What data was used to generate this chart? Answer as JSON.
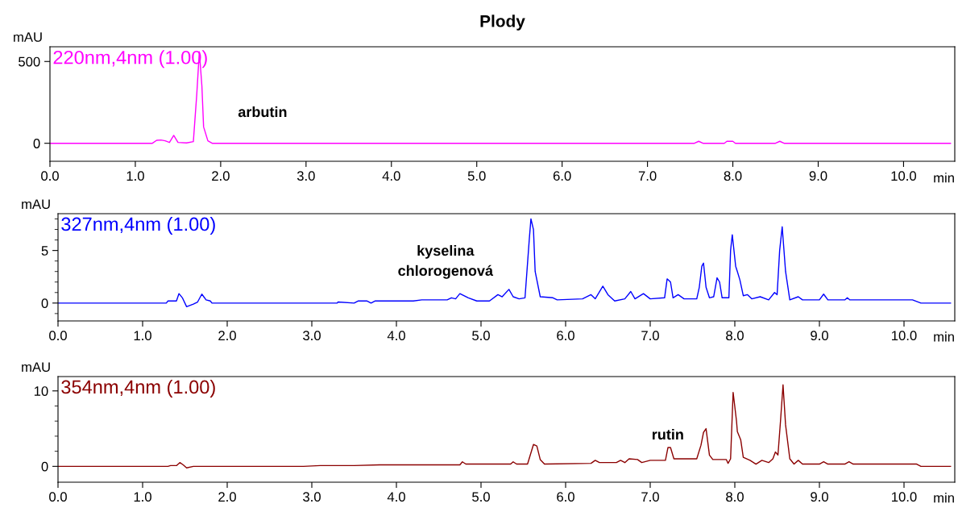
{
  "chart_data": [
    {
      "type": "line",
      "title": "Plody",
      "xlabel": "min",
      "ylabel": "mAU",
      "xlim": [
        0,
        10.6
      ],
      "ylim": [
        -110,
        590
      ],
      "xticks": [
        {
          "value": 0,
          "label": "0.0"
        },
        {
          "value": 1,
          "label": "1.0"
        },
        {
          "value": 2,
          "label": "2.0"
        },
        {
          "value": 3,
          "label": "3.0"
        },
        {
          "value": 4,
          "label": "4.0"
        },
        {
          "value": 5,
          "label": "5.0"
        },
        {
          "value": 6,
          "label": "6.0"
        },
        {
          "value": 7,
          "label": "7.0"
        },
        {
          "value": 8,
          "label": "8.0"
        },
        {
          "value": 9,
          "label": "9.0"
        },
        {
          "value": 10,
          "label": "10.0"
        }
      ],
      "yticks": [
        0,
        500
      ],
      "grid": false,
      "legend": false,
      "annotations": [
        "arbutin"
      ],
      "series": [
        {
          "name": "220nm,4nm (1.00)",
          "color": "#ff00ff",
          "x": [
            0,
            1.2,
            1.25,
            1.3,
            1.35,
            1.4,
            1.45,
            1.5,
            1.6,
            1.68,
            1.72,
            1.75,
            1.78,
            1.8,
            1.85,
            1.9,
            7.55,
            7.6,
            7.65,
            7.9,
            7.93,
            8.0,
            8.03,
            8.5,
            8.55,
            8.6,
            10.55
          ],
          "values": [
            0,
            0,
            18,
            20,
            15,
            5,
            48,
            5,
            2,
            10,
            300,
            560,
            350,
            100,
            15,
            0,
            0,
            12,
            0,
            0,
            12,
            12,
            0,
            0,
            12,
            0,
            0
          ]
        }
      ]
    },
    {
      "type": "line",
      "xlabel": "min",
      "ylabel": "mAU",
      "xlim": [
        0,
        10.6
      ],
      "ylim": [
        -1.7,
        8.5
      ],
      "xticks": [
        {
          "value": 0,
          "label": "0.0"
        },
        {
          "value": 1,
          "label": "1.0"
        },
        {
          "value": 2,
          "label": "2.0"
        },
        {
          "value": 3,
          "label": "3.0"
        },
        {
          "value": 4,
          "label": "4.0"
        },
        {
          "value": 5,
          "label": "5.0"
        },
        {
          "value": 6,
          "label": "6.0"
        },
        {
          "value": 7,
          "label": "7.0"
        },
        {
          "value": 8,
          "label": "8.0"
        },
        {
          "value": 9,
          "label": "9.0"
        },
        {
          "value": 10,
          "label": "10.0"
        }
      ],
      "yticks": [
        {
          "value": -1,
          "label": null
        },
        0,
        {
          "value": 1,
          "label": null
        },
        {
          "value": 2,
          "label": null
        },
        {
          "value": 3,
          "label": null
        },
        {
          "value": 4,
          "label": null
        },
        5,
        {
          "value": 6,
          "label": null
        },
        {
          "value": 7,
          "label": null
        },
        {
          "value": 8,
          "label": null
        }
      ],
      "grid": false,
      "legend": false,
      "annotations": [
        "kyselina\nchlorogenová"
      ],
      "series": [
        {
          "name": "327nm,4nm (1.00)",
          "color": "#0000ff",
          "x": [
            0,
            1.28,
            1.3,
            1.4,
            1.43,
            1.47,
            1.52,
            1.6,
            1.65,
            1.7,
            1.75,
            1.8,
            1.82,
            3.3,
            3.31,
            3.5,
            3.55,
            3.65,
            3.7,
            3.75,
            4.2,
            4.3,
            4.6,
            4.65,
            4.7,
            4.75,
            4.85,
            4.95,
            5.1,
            5.2,
            5.25,
            5.33,
            5.38,
            5.45,
            5.52,
            5.57,
            5.59,
            5.62,
            5.64,
            5.7,
            5.85,
            5.9,
            6.2,
            6.3,
            6.35,
            6.44,
            6.5,
            6.58,
            6.7,
            6.77,
            6.82,
            6.92,
            7.0,
            7.17,
            7.2,
            7.24,
            7.27,
            7.33,
            7.4,
            7.55,
            7.58,
            7.61,
            7.63,
            7.66,
            7.7,
            7.75,
            7.79,
            7.82,
            7.85,
            7.93,
            7.95,
            7.97,
            8.01,
            8.03,
            8.06,
            8.1,
            8.15,
            8.2,
            8.3,
            8.4,
            8.47,
            8.5,
            8.53,
            8.56,
            8.6,
            8.65,
            8.75,
            8.8,
            9.0,
            9.05,
            9.1,
            9.3,
            9.33,
            9.36,
            10.1,
            10.2,
            10.55
          ],
          "values": [
            0,
            0,
            0.2,
            0.2,
            0.9,
            0.5,
            -0.35,
            -0.1,
            0.1,
            0.85,
            0.3,
            0.2,
            0,
            0,
            0.1,
            0,
            0.2,
            0.2,
            0,
            0.2,
            0.2,
            0.3,
            0.3,
            0.5,
            0.4,
            0.9,
            0.5,
            0.2,
            0.2,
            0.8,
            0.6,
            1.3,
            0.6,
            0.4,
            0.5,
            6.0,
            8.0,
            7.0,
            3.0,
            0.6,
            0.5,
            0.3,
            0.4,
            0.8,
            0.4,
            1.6,
            0.8,
            0.2,
            0.4,
            1.1,
            0.4,
            0.9,
            0.4,
            0.5,
            2.3,
            2.0,
            0.5,
            0.8,
            0.4,
            0.4,
            1.5,
            3.5,
            3.8,
            1.5,
            0.5,
            0.6,
            2.4,
            2.0,
            0.5,
            0.5,
            5.0,
            6.5,
            3.5,
            3.0,
            2.2,
            0.7,
            0.8,
            0.4,
            0.6,
            0.3,
            1.0,
            0.8,
            5.0,
            7.25,
            3.0,
            0.3,
            0.6,
            0.3,
            0.3,
            0.85,
            0.3,
            0.3,
            0.5,
            0.3,
            0.3,
            0,
            0
          ]
        }
      ]
    },
    {
      "type": "line",
      "xlabel": "min",
      "ylabel": "mAU",
      "xlim": [
        0,
        10.6
      ],
      "ylim": [
        -2.1,
        11.9
      ],
      "xticks": [
        {
          "value": 0,
          "label": "0.0"
        },
        {
          "value": 1,
          "label": "1.0"
        },
        {
          "value": 2,
          "label": "2.0"
        },
        {
          "value": 3,
          "label": "3.0"
        },
        {
          "value": 4,
          "label": "4.0"
        },
        {
          "value": 5,
          "label": "5.0"
        },
        {
          "value": 6,
          "label": "6.0"
        },
        {
          "value": 7,
          "label": "7.0"
        },
        {
          "value": 8,
          "label": "8.0"
        },
        {
          "value": 9,
          "label": "9.0"
        },
        {
          "value": 10,
          "label": "10.0"
        }
      ],
      "yticks": [
        0,
        {
          "value": 2,
          "label": null
        },
        {
          "value": 4,
          "label": null
        },
        {
          "value": 6,
          "label": null
        },
        {
          "value": 8,
          "label": null
        },
        10
      ],
      "grid": false,
      "legend": false,
      "annotations": [
        "rutin"
      ],
      "series": [
        {
          "name": "354nm,4nm (1.00)",
          "color": "#8b0000",
          "x": [
            0,
            1.3,
            1.33,
            1.4,
            1.44,
            1.48,
            1.52,
            1.6,
            2.9,
            3.1,
            3.5,
            3.8,
            4.75,
            4.78,
            4.82,
            5.35,
            5.38,
            5.42,
            5.55,
            5.62,
            5.66,
            5.7,
            5.75,
            6.3,
            6.35,
            6.4,
            6.6,
            6.65,
            6.7,
            6.75,
            6.85,
            6.9,
            7.0,
            7.18,
            7.21,
            7.24,
            7.28,
            7.55,
            7.6,
            7.63,
            7.66,
            7.7,
            7.74,
            7.9,
            7.92,
            7.95,
            7.98,
            8.02,
            8.03,
            8.07,
            8.1,
            8.18,
            8.25,
            8.32,
            8.4,
            8.45,
            8.48,
            8.51,
            8.54,
            8.57,
            8.6,
            8.65,
            8.7,
            8.75,
            8.8,
            9.0,
            9.05,
            9.1,
            9.3,
            9.35,
            9.4,
            10.15,
            10.2,
            10.55
          ],
          "values": [
            0,
            0,
            0.1,
            0.1,
            0.5,
            0.2,
            -0.2,
            0,
            0,
            0.1,
            0.1,
            0.2,
            0.2,
            0.6,
            0.3,
            0.3,
            0.6,
            0.3,
            0.3,
            2.9,
            2.7,
            0.9,
            0.3,
            0.4,
            0.8,
            0.5,
            0.5,
            0.8,
            0.5,
            1.0,
            0.9,
            0.5,
            0.8,
            0.8,
            2.5,
            2.5,
            1.0,
            1.0,
            2.8,
            4.5,
            5.0,
            1.5,
            0.9,
            0.9,
            0.4,
            1.0,
            9.8,
            6.0,
            4.6,
            3.5,
            1.2,
            0.8,
            0.3,
            0.8,
            0.5,
            1.0,
            1.9,
            1.5,
            6.0,
            10.8,
            5.5,
            1.0,
            0.3,
            0.8,
            0.3,
            0.3,
            0.6,
            0.3,
            0.3,
            0.6,
            0.3,
            0.3,
            0,
            0
          ]
        }
      ]
    }
  ]
}
